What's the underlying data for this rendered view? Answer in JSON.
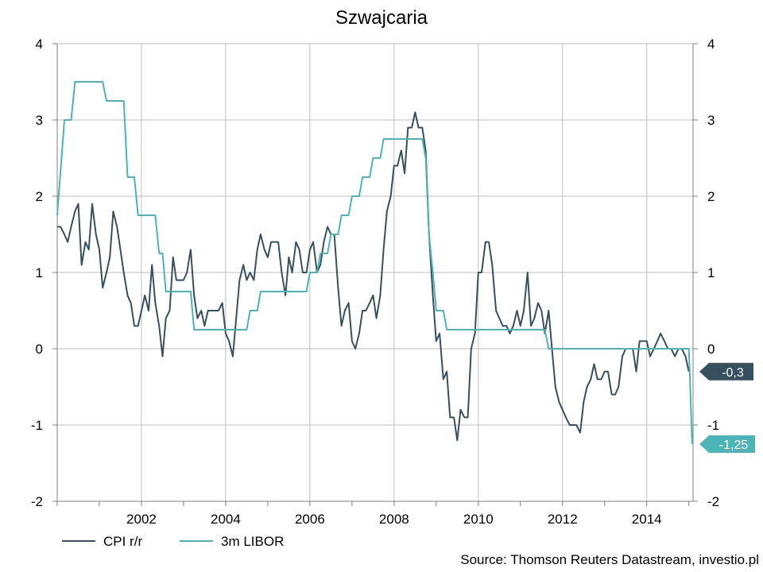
{
  "chart_data": {
    "type": "line",
    "title": "Szwajcaria",
    "xlabel": "",
    "ylabel": "",
    "xlim": [
      2000.0,
      2015.1
    ],
    "ylim": [
      -2,
      4
    ],
    "y_ticks": [
      "4",
      "3",
      "2",
      "1",
      "0",
      "-1",
      "-2"
    ],
    "y_right_ticks": [
      "4",
      "3",
      "2",
      "1",
      "0",
      "-1",
      "-2"
    ],
    "x_ticks": [
      "2002",
      "2004",
      "2006",
      "2008",
      "2010",
      "2012",
      "2014"
    ],
    "grid": true,
    "legend_position": "bottom-left",
    "source": "Source: Thomson Reuters Datastream, investio.pl",
    "colors": {
      "cpi": "#37505e",
      "libor": "#4bb5b8",
      "grid": "#bfbfbf",
      "axis": "#808080"
    },
    "badges": [
      {
        "label": "-0,3",
        "value": -0.3,
        "color": "#37505e"
      },
      {
        "label": "-1,25",
        "value": -1.25,
        "color": "#4bb5b8"
      }
    ],
    "series": [
      {
        "name": "CPI r/r",
        "key": "cpi",
        "points": [
          [
            2000.0,
            1.6
          ],
          [
            2000.08,
            1.6
          ],
          [
            2000.17,
            1.5
          ],
          [
            2000.25,
            1.4
          ],
          [
            2000.33,
            1.6
          ],
          [
            2000.42,
            1.8
          ],
          [
            2000.5,
            1.9
          ],
          [
            2000.58,
            1.1
          ],
          [
            2000.67,
            1.4
          ],
          [
            2000.75,
            1.3
          ],
          [
            2000.83,
            1.9
          ],
          [
            2000.92,
            1.5
          ],
          [
            2001.0,
            1.3
          ],
          [
            2001.08,
            0.8
          ],
          [
            2001.17,
            1.0
          ],
          [
            2001.25,
            1.2
          ],
          [
            2001.33,
            1.8
          ],
          [
            2001.42,
            1.6
          ],
          [
            2001.5,
            1.3
          ],
          [
            2001.58,
            1.0
          ],
          [
            2001.67,
            0.7
          ],
          [
            2001.75,
            0.6
          ],
          [
            2001.83,
            0.3
          ],
          [
            2001.92,
            0.3
          ],
          [
            2002.0,
            0.5
          ],
          [
            2002.08,
            0.7
          ],
          [
            2002.17,
            0.5
          ],
          [
            2002.25,
            1.1
          ],
          [
            2002.33,
            0.6
          ],
          [
            2002.42,
            0.3
          ],
          [
            2002.5,
            -0.1
          ],
          [
            2002.58,
            0.4
          ],
          [
            2002.67,
            0.5
          ],
          [
            2002.75,
            1.2
          ],
          [
            2002.83,
            0.9
          ],
          [
            2002.92,
            0.9
          ],
          [
            2003.0,
            0.9
          ],
          [
            2003.08,
            1.0
          ],
          [
            2003.17,
            1.3
          ],
          [
            2003.25,
            0.7
          ],
          [
            2003.33,
            0.4
          ],
          [
            2003.42,
            0.5
          ],
          [
            2003.5,
            0.3
          ],
          [
            2003.58,
            0.5
          ],
          [
            2003.67,
            0.5
          ],
          [
            2003.75,
            0.5
          ],
          [
            2003.83,
            0.5
          ],
          [
            2003.92,
            0.6
          ],
          [
            2004.0,
            0.2
          ],
          [
            2004.08,
            0.1
          ],
          [
            2004.17,
            -0.1
          ],
          [
            2004.25,
            0.4
          ],
          [
            2004.33,
            0.9
          ],
          [
            2004.42,
            1.1
          ],
          [
            2004.5,
            0.9
          ],
          [
            2004.58,
            1.0
          ],
          [
            2004.67,
            0.9
          ],
          [
            2004.75,
            1.3
          ],
          [
            2004.83,
            1.5
          ],
          [
            2004.92,
            1.3
          ],
          [
            2005.0,
            1.2
          ],
          [
            2005.08,
            1.4
          ],
          [
            2005.17,
            1.4
          ],
          [
            2005.25,
            1.4
          ],
          [
            2005.33,
            1.0
          ],
          [
            2005.42,
            0.7
          ],
          [
            2005.5,
            1.2
          ],
          [
            2005.58,
            1.0
          ],
          [
            2005.67,
            1.4
          ],
          [
            2005.75,
            1.3
          ],
          [
            2005.83,
            1.0
          ],
          [
            2005.92,
            1.0
          ],
          [
            2006.0,
            1.3
          ],
          [
            2006.08,
            1.4
          ],
          [
            2006.17,
            1.0
          ],
          [
            2006.25,
            1.1
          ],
          [
            2006.33,
            1.4
          ],
          [
            2006.42,
            1.6
          ],
          [
            2006.5,
            1.5
          ],
          [
            2006.58,
            1.5
          ],
          [
            2006.67,
            0.8
          ],
          [
            2006.75,
            0.3
          ],
          [
            2006.83,
            0.5
          ],
          [
            2006.92,
            0.6
          ],
          [
            2007.0,
            0.1
          ],
          [
            2007.08,
            0.0
          ],
          [
            2007.17,
            0.2
          ],
          [
            2007.25,
            0.5
          ],
          [
            2007.33,
            0.5
          ],
          [
            2007.42,
            0.6
          ],
          [
            2007.5,
            0.7
          ],
          [
            2007.58,
            0.4
          ],
          [
            2007.67,
            0.7
          ],
          [
            2007.75,
            1.3
          ],
          [
            2007.83,
            1.8
          ],
          [
            2007.92,
            2.0
          ],
          [
            2008.0,
            2.4
          ],
          [
            2008.08,
            2.4
          ],
          [
            2008.17,
            2.6
          ],
          [
            2008.25,
            2.3
          ],
          [
            2008.33,
            2.9
          ],
          [
            2008.42,
            2.9
          ],
          [
            2008.5,
            3.1
          ],
          [
            2008.58,
            2.9
          ],
          [
            2008.67,
            2.9
          ],
          [
            2008.75,
            2.6
          ],
          [
            2008.83,
            1.5
          ],
          [
            2008.92,
            0.7
          ],
          [
            2009.0,
            0.1
          ],
          [
            2009.08,
            0.2
          ],
          [
            2009.17,
            -0.4
          ],
          [
            2009.25,
            -0.3
          ],
          [
            2009.33,
            -0.9
          ],
          [
            2009.42,
            -0.9
          ],
          [
            2009.5,
            -1.2
          ],
          [
            2009.58,
            -0.8
          ],
          [
            2009.67,
            -0.9
          ],
          [
            2009.75,
            -0.9
          ],
          [
            2009.83,
            0.0
          ],
          [
            2009.92,
            0.2
          ],
          [
            2010.0,
            1.0
          ],
          [
            2010.08,
            1.0
          ],
          [
            2010.17,
            1.4
          ],
          [
            2010.25,
            1.4
          ],
          [
            2010.33,
            1.1
          ],
          [
            2010.42,
            0.5
          ],
          [
            2010.5,
            0.4
          ],
          [
            2010.58,
            0.3
          ],
          [
            2010.67,
            0.3
          ],
          [
            2010.75,
            0.2
          ],
          [
            2010.83,
            0.3
          ],
          [
            2010.92,
            0.5
          ],
          [
            2011.0,
            0.3
          ],
          [
            2011.08,
            0.5
          ],
          [
            2011.17,
            1.0
          ],
          [
            2011.25,
            0.3
          ],
          [
            2011.33,
            0.4
          ],
          [
            2011.42,
            0.6
          ],
          [
            2011.5,
            0.5
          ],
          [
            2011.58,
            0.2
          ],
          [
            2011.67,
            0.5
          ],
          [
            2011.75,
            0.0
          ],
          [
            2011.83,
            -0.5
          ],
          [
            2011.92,
            -0.7
          ],
          [
            2012.0,
            -0.8
          ],
          [
            2012.08,
            -0.9
          ],
          [
            2012.17,
            -1.0
          ],
          [
            2012.25,
            -1.0
          ],
          [
            2012.33,
            -1.0
          ],
          [
            2012.42,
            -1.1
          ],
          [
            2012.5,
            -0.7
          ],
          [
            2012.58,
            -0.5
          ],
          [
            2012.67,
            -0.4
          ],
          [
            2012.75,
            -0.2
          ],
          [
            2012.83,
            -0.4
          ],
          [
            2012.92,
            -0.4
          ],
          [
            2013.0,
            -0.3
          ],
          [
            2013.08,
            -0.3
          ],
          [
            2013.17,
            -0.6
          ],
          [
            2013.25,
            -0.6
          ],
          [
            2013.33,
            -0.5
          ],
          [
            2013.42,
            -0.1
          ],
          [
            2013.5,
            0.0
          ],
          [
            2013.58,
            0.0
          ],
          [
            2013.67,
            0.0
          ],
          [
            2013.75,
            -0.3
          ],
          [
            2013.83,
            0.1
          ],
          [
            2013.92,
            0.1
          ],
          [
            2014.0,
            0.1
          ],
          [
            2014.08,
            -0.1
          ],
          [
            2014.17,
            0.0
          ],
          [
            2014.25,
            0.1
          ],
          [
            2014.33,
            0.2
          ],
          [
            2014.42,
            0.1
          ],
          [
            2014.5,
            0.0
          ],
          [
            2014.58,
            0.0
          ],
          [
            2014.67,
            -0.1
          ],
          [
            2014.75,
            0.0
          ],
          [
            2014.83,
            0.0
          ],
          [
            2014.92,
            -0.1
          ],
          [
            2015.0,
            -0.3
          ]
        ]
      },
      {
        "name": "3m LIBOR",
        "key": "libor",
        "points": [
          [
            2000.0,
            1.75
          ],
          [
            2000.17,
            3.0
          ],
          [
            2000.33,
            3.0
          ],
          [
            2000.42,
            3.5
          ],
          [
            2001.08,
            3.5
          ],
          [
            2001.17,
            3.25
          ],
          [
            2001.58,
            3.25
          ],
          [
            2001.67,
            2.25
          ],
          [
            2001.83,
            2.25
          ],
          [
            2001.92,
            1.75
          ],
          [
            2002.33,
            1.75
          ],
          [
            2002.42,
            1.25
          ],
          [
            2002.5,
            1.25
          ],
          [
            2002.58,
            0.75
          ],
          [
            2003.17,
            0.75
          ],
          [
            2003.25,
            0.25
          ],
          [
            2004.5,
            0.25
          ],
          [
            2004.58,
            0.5
          ],
          [
            2004.75,
            0.5
          ],
          [
            2004.83,
            0.75
          ],
          [
            2005.92,
            0.75
          ],
          [
            2006.0,
            1.0
          ],
          [
            2006.17,
            1.0
          ],
          [
            2006.25,
            1.25
          ],
          [
            2006.42,
            1.25
          ],
          [
            2006.5,
            1.5
          ],
          [
            2006.67,
            1.5
          ],
          [
            2006.75,
            1.75
          ],
          [
            2006.92,
            1.75
          ],
          [
            2007.0,
            2.0
          ],
          [
            2007.17,
            2.0
          ],
          [
            2007.25,
            2.25
          ],
          [
            2007.42,
            2.25
          ],
          [
            2007.5,
            2.5
          ],
          [
            2007.67,
            2.5
          ],
          [
            2007.75,
            2.75
          ],
          [
            2008.67,
            2.75
          ],
          [
            2008.75,
            2.5
          ],
          [
            2008.83,
            1.5
          ],
          [
            2008.92,
            1.0
          ],
          [
            2009.0,
            0.5
          ],
          [
            2009.17,
            0.5
          ],
          [
            2009.25,
            0.25
          ],
          [
            2011.58,
            0.25
          ],
          [
            2011.67,
            0.0
          ],
          [
            2015.0,
            0.0
          ],
          [
            2015.08,
            -1.25
          ]
        ]
      }
    ]
  }
}
